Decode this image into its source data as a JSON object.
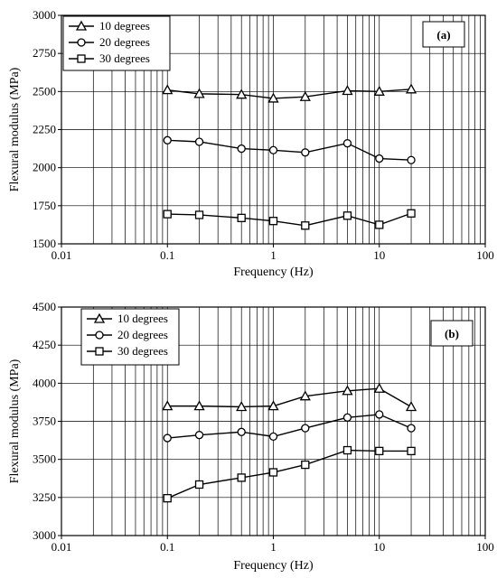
{
  "chart_data": [
    {
      "type": "line",
      "panel_label": "(a)",
      "xlabel": "Frequency (Hz)",
      "ylabel": "Flexural modulus (MPa)",
      "xscale": "log",
      "xlim": [
        0.01,
        100
      ],
      "ylim": [
        1500,
        3000
      ],
      "x_ticks": [
        0.01,
        0.1,
        1,
        10,
        100
      ],
      "x_tick_labels": [
        "0.01",
        "0.1",
        "1",
        "10",
        "100"
      ],
      "y_ticks": [
        1500,
        1750,
        2000,
        2250,
        2500,
        2750,
        3000
      ],
      "y_tick_labels": [
        "1500",
        "1750",
        "2000",
        "2250",
        "2500",
        "2750",
        "3000"
      ],
      "grid": "vertical minor log lines, horizontal major lines",
      "legend_position": "top-left",
      "x": [
        0.1,
        0.2,
        0.5,
        1,
        2,
        5,
        10,
        20
      ],
      "series": [
        {
          "name": "10 degrees",
          "marker": "triangle",
          "values": [
            2510,
            2485,
            2480,
            2455,
            2465,
            2505,
            2500,
            2515
          ]
        },
        {
          "name": "20 degrees",
          "marker": "circle",
          "values": [
            2180,
            2170,
            2125,
            2115,
            2100,
            2160,
            2060,
            2050
          ]
        },
        {
          "name": "30 degrees",
          "marker": "square",
          "values": [
            1695,
            1690,
            1670,
            1650,
            1620,
            1685,
            1625,
            1700
          ]
        }
      ]
    },
    {
      "type": "line",
      "panel_label": "(b)",
      "xlabel": "Frequency (Hz)",
      "ylabel": "Flexural modulus (MPa)",
      "xscale": "log",
      "xlim": [
        0.01,
        100
      ],
      "ylim": [
        3000,
        4500
      ],
      "x_ticks": [
        0.01,
        0.1,
        1,
        10,
        100
      ],
      "x_tick_labels": [
        "0.01",
        "0.1",
        "1",
        "10",
        "100"
      ],
      "y_ticks": [
        3000,
        3250,
        3500,
        3750,
        4000,
        4250,
        4500
      ],
      "y_tick_labels": [
        "3000",
        "3250",
        "3500",
        "3750",
        "4000",
        "4250",
        "4500"
      ],
      "grid": "vertical minor log lines, horizontal major lines",
      "legend_position": "top-left",
      "x": [
        0.1,
        0.2,
        0.5,
        1,
        2,
        5,
        10,
        20
      ],
      "series": [
        {
          "name": "10 degrees",
          "marker": "triangle",
          "values": [
            3850,
            3850,
            3845,
            3850,
            3915,
            3950,
            3965,
            3845
          ]
        },
        {
          "name": "20 degrees",
          "marker": "circle",
          "values": [
            3640,
            3660,
            3680,
            3650,
            3705,
            3775,
            3795,
            3705
          ]
        },
        {
          "name": "30 degrees",
          "marker": "square",
          "values": [
            3245,
            3335,
            3380,
            3415,
            3465,
            3560,
            3555,
            3555
          ]
        }
      ]
    }
  ]
}
